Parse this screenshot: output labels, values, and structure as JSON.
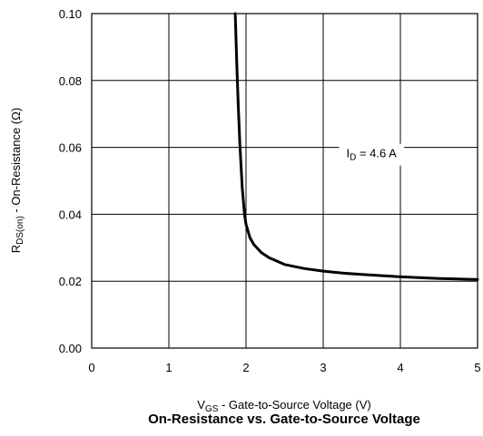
{
  "chart_data": {
    "type": "line",
    "title": "On-Resistance vs. Gate-to-Source Voltage",
    "xlabel": {
      "main": "V",
      "sub": "GS",
      "rest": " - Gate-to-Source Voltage (V)"
    },
    "ylabel": {
      "main": "R",
      "sub": "DS(on)",
      "rest": " - On-Resistance (Ω)"
    },
    "xlim": [
      0,
      5
    ],
    "ylim": [
      0,
      0.1
    ],
    "xticks": [
      0,
      1,
      2,
      3,
      4,
      5
    ],
    "xtick_labels": [
      "0",
      "1",
      "2",
      "3",
      "4",
      "5"
    ],
    "yticks": [
      0,
      0.02,
      0.04,
      0.06,
      0.08,
      0.1
    ],
    "ytick_labels": [
      "0.00",
      "0.02",
      "0.04",
      "0.06",
      "0.08",
      "0.10"
    ],
    "grid": true,
    "annotation": {
      "main": "I",
      "sub": "D",
      "rest": " = 4.6 A",
      "x": 3.3,
      "y": 0.057
    },
    "series": [
      {
        "x": [
          1.86,
          1.87,
          1.88,
          1.9,
          1.92,
          1.95,
          1.98,
          2.0,
          2.05,
          2.1,
          2.2,
          2.3,
          2.5,
          2.75,
          3.0,
          3.25,
          3.5,
          4.0,
          4.5,
          5.0
        ],
        "y": [
          0.1,
          0.093,
          0.085,
          0.072,
          0.061,
          0.048,
          0.04,
          0.037,
          0.033,
          0.031,
          0.0285,
          0.027,
          0.025,
          0.0238,
          0.023,
          0.0224,
          0.022,
          0.0213,
          0.0208,
          0.0205
        ]
      }
    ]
  }
}
